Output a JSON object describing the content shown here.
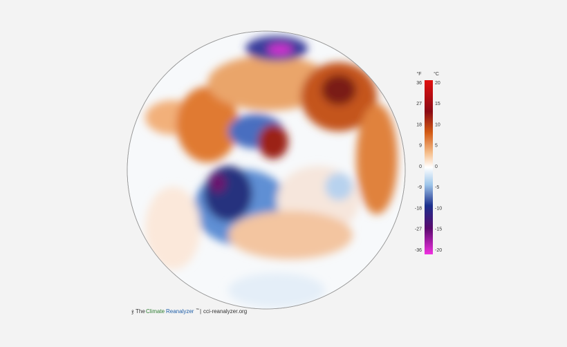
{
  "colorbar": {
    "fahrenheit": {
      "unit": "°F",
      "ticks": [
        36,
        27,
        18,
        9,
        0,
        -9,
        -18,
        -27,
        -36
      ]
    },
    "celsius": {
      "unit": "°C",
      "ticks": [
        20,
        15,
        10,
        5,
        0,
        -5,
        -10,
        -15,
        -20
      ]
    }
  },
  "footer": {
    "prefix": "The",
    "brand_1": "Climate",
    "brand_2": "Reanalyzer",
    "trademark": "™",
    "separator": "|",
    "url": "cci-reanalyzer.org"
  }
}
